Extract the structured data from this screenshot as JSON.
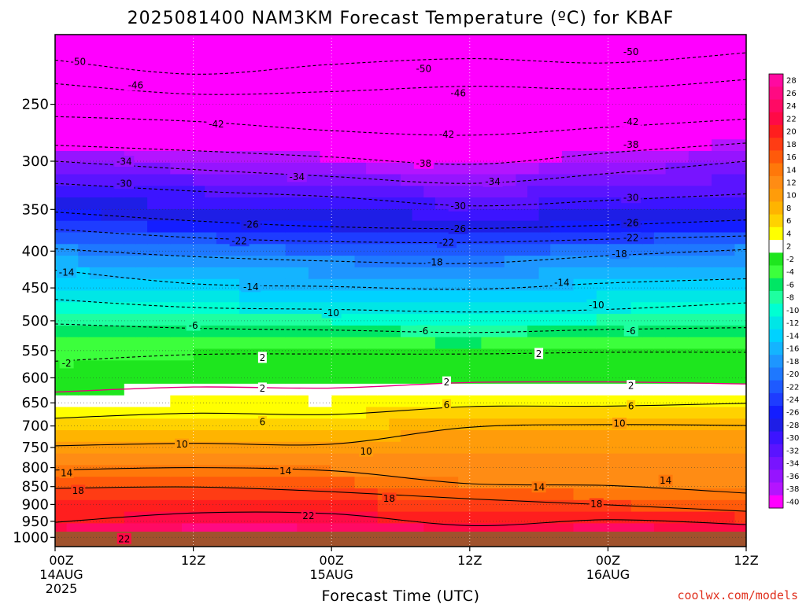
{
  "title": "2025081400 NAM3KM Forecast Temperature (ºC) for KBAF",
  "credit": "coolwx.com/models",
  "chart_data": {
    "type": "heatmap",
    "title": "2025081400 NAM3KM Forecast Temperature (ºC) for KBAF",
    "xlabel": "Forecast Time (UTC)",
    "ylabel": "",
    "x_range_hours": [
      0,
      60
    ],
    "y_log_scale": true,
    "y_range_hPa": [
      1030,
      200
    ],
    "grid": true,
    "y_ticks": [
      250,
      300,
      350,
      400,
      450,
      500,
      550,
      600,
      650,
      700,
      750,
      800,
      850,
      900,
      950,
      1000
    ],
    "x_ticks": [
      {
        "hour": 0,
        "label": "00Z",
        "date": "14AUG",
        "year": "2025"
      },
      {
        "hour": 12,
        "label": "12Z",
        "date": "",
        "year": ""
      },
      {
        "hour": 24,
        "label": "00Z",
        "date": "15AUG",
        "year": ""
      },
      {
        "hour": 36,
        "label": "12Z",
        "date": "",
        "year": ""
      },
      {
        "hour": 48,
        "label": "00Z",
        "date": "16AUG",
        "year": ""
      },
      {
        "hour": 60,
        "label": "12Z",
        "date": "",
        "year": ""
      }
    ],
    "colorbar": {
      "levels": [
        "28",
        "26",
        "24",
        "22",
        "20",
        "18",
        "16",
        "14",
        "12",
        "10",
        "8",
        "6",
        "4",
        "2",
        "-2",
        "-4",
        "-6",
        "-8",
        "-10",
        "-12",
        "-14",
        "-16",
        "-18",
        "-20",
        "-22",
        "-24",
        "-26",
        "-28",
        "-30",
        "-32",
        "-34",
        "-36",
        "-38",
        "-40"
      ],
      "colors": [
        "#ff0aa0",
        "#ff0a82",
        "#ff0a64",
        "#ff0a46",
        "#ff1e1e",
        "#ff3c14",
        "#ff5a0a",
        "#ff780a",
        "#ff8c14",
        "#ff9c0a",
        "#ffb400",
        "#ffd200",
        "#ffff00",
        "#ffffff",
        "#1ee61e",
        "#3cff3c",
        "#00e664",
        "#1effa0",
        "#00ffd2",
        "#00e6e6",
        "#00d2ff",
        "#14b4ff",
        "#1e96ff",
        "#1e78ff",
        "#1e5aff",
        "#1e3cff",
        "#141eff",
        "#1e1ee6",
        "#3c14ff",
        "#5a14ff",
        "#7814ff",
        "#9614ff",
        "#b414ff",
        "#ff00ff"
      ]
    },
    "contours": [
      {
        "value": -50,
        "label": "-50",
        "pressure": [
          217,
          227,
          220,
          216,
          219,
          212
        ],
        "label_at": [
          [
            2,
            218
          ],
          [
            32,
            223
          ],
          [
            50,
            211
          ]
        ]
      },
      {
        "value": -46,
        "label": "-46",
        "pressure": [
          234,
          242,
          240,
          236,
          238,
          231
        ],
        "label_at": [
          [
            7,
            235
          ],
          [
            35,
            241
          ]
        ]
      },
      {
        "value": -42,
        "label": "-42",
        "pressure": [
          260,
          264,
          272,
          276,
          269,
          262
        ],
        "label_at": [
          [
            14,
            266
          ],
          [
            34,
            275
          ],
          [
            50,
            264
          ]
        ]
      },
      {
        "value": -38,
        "label": "-38",
        "pressure": [
          285,
          290,
          296,
          303,
          292,
          283
        ],
        "label_at": [
          [
            32,
            302
          ],
          [
            50,
            284
          ]
        ]
      },
      {
        "value": -34,
        "label": "-34",
        "pressure": [
          300,
          308,
          315,
          322,
          312,
          300
        ],
        "label_at": [
          [
            6,
            300
          ],
          [
            21,
            315
          ],
          [
            38,
            320
          ]
        ]
      },
      {
        "value": -30,
        "label": "-30",
        "pressure": [
          322,
          330,
          336,
          346,
          340,
          333
        ],
        "label_at": [
          [
            6,
            322
          ],
          [
            35,
            346
          ],
          [
            50,
            337
          ]
        ]
      },
      {
        "value": -26,
        "label": "-26",
        "pressure": [
          353,
          363,
          370,
          372,
          368,
          362
        ],
        "label_at": [
          [
            17,
            367
          ],
          [
            35,
            372
          ],
          [
            50,
            365
          ]
        ]
      },
      {
        "value": -22,
        "label": "-22",
        "pressure": [
          373,
          383,
          388,
          389,
          385,
          381
        ],
        "label_at": [
          [
            16,
            387
          ],
          [
            34,
            389
          ],
          [
            50,
            383
          ]
        ]
      },
      {
        "value": -18,
        "label": "-18",
        "pressure": [
          397,
          407,
          413,
          416,
          406,
          398
        ],
        "label_at": [
          [
            33,
            414
          ],
          [
            49,
            403
          ]
        ]
      },
      {
        "value": -14,
        "label": "-14",
        "pressure": [
          425,
          444,
          448,
          452,
          443,
          437
        ],
        "label_at": [
          [
            1,
            428
          ],
          [
            17,
            448
          ],
          [
            44,
            442
          ]
        ]
      },
      {
        "value": -10,
        "label": "-10",
        "pressure": [
          467,
          479,
          482,
          486,
          482,
          472
        ],
        "label_at": [
          [
            24,
            487
          ],
          [
            47,
            475
          ]
        ]
      },
      {
        "value": -6,
        "label": "-6",
        "pressure": [
          505,
          512,
          515,
          519,
          514,
          511
        ],
        "label_at": [
          [
            12,
            507
          ],
          [
            32,
            516
          ],
          [
            50,
            516
          ]
        ]
      },
      {
        "value": -2,
        "label": "-2",
        "pressure": [
          569,
          557,
          556,
          556,
          553,
          553
        ],
        "label_at": [
          [
            1,
            572
          ]
        ]
      },
      {
        "value": 2,
        "label": "2",
        "pressure": [
          628,
          618,
          620,
          609,
          608,
          612
        ],
        "label_at": [
          [
            18,
            562
          ],
          [
            18,
            620
          ],
          [
            34,
            608
          ],
          [
            42,
            555
          ],
          [
            50,
            615
          ]
        ]
      },
      {
        "value": 6,
        "label": "6",
        "pressure": [
          683,
          672,
          675,
          658,
          657,
          651
        ],
        "label_at": [
          [
            18,
            690
          ],
          [
            34,
            654
          ],
          [
            50,
            656
          ]
        ]
      },
      {
        "value": 10,
        "label": "10",
        "pressure": [
          746,
          740,
          742,
          703,
          697,
          699
        ],
        "label_at": [
          [
            11,
            742
          ],
          [
            27,
            759
          ],
          [
            49,
            694
          ]
        ]
      },
      {
        "value": 14,
        "label": "14",
        "pressure": [
          806,
          800,
          808,
          842,
          847,
          868
        ],
        "label_at": [
          [
            1,
            813
          ],
          [
            20,
            808
          ],
          [
            42,
            851
          ],
          [
            53,
            833
          ]
        ]
      },
      {
        "value": 18,
        "label": "18",
        "pressure": [
          855,
          851,
          864,
          884,
          901,
          920
        ],
        "label_at": [
          [
            2,
            860
          ],
          [
            29,
            882
          ],
          [
            47,
            898
          ]
        ]
      },
      {
        "value": 22,
        "label": "22",
        "pressure": [
          953,
          925,
          927,
          963,
          945,
          960
        ],
        "label_at": [
          [
            6,
            1004
          ],
          [
            22,
            933
          ]
        ]
      }
    ]
  }
}
